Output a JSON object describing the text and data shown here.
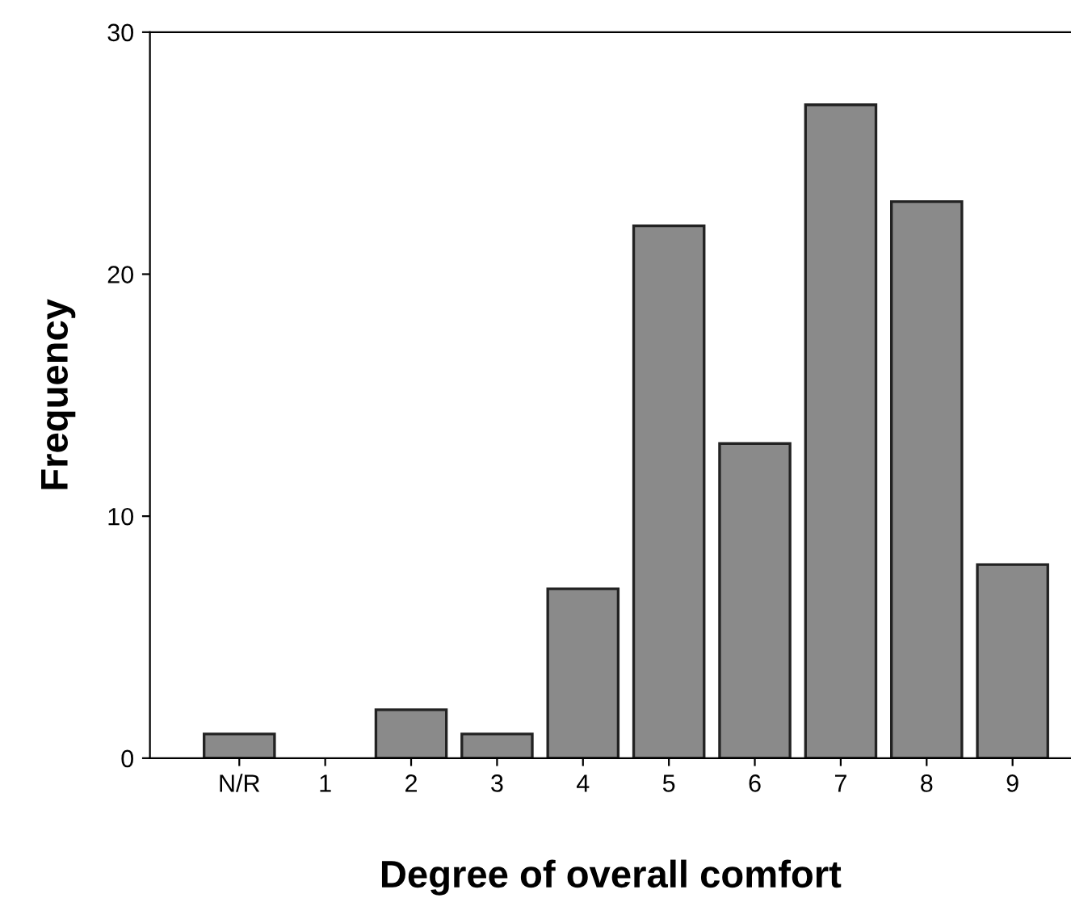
{
  "chart_data": {
    "type": "bar",
    "xlabel": "Degree of overall comfort",
    "ylabel": "Frequency",
    "categories": [
      "N/R",
      "1",
      "2",
      "3",
      "4",
      "5",
      "6",
      "7",
      "8",
      "9"
    ],
    "values": [
      1,
      0,
      2,
      1,
      7,
      22,
      13,
      27,
      23,
      8
    ],
    "color": "#8a8a8a",
    "ylim": [
      0,
      30
    ],
    "yticks": [
      0,
      10,
      20,
      30
    ],
    "grid": false,
    "legend": false
  }
}
